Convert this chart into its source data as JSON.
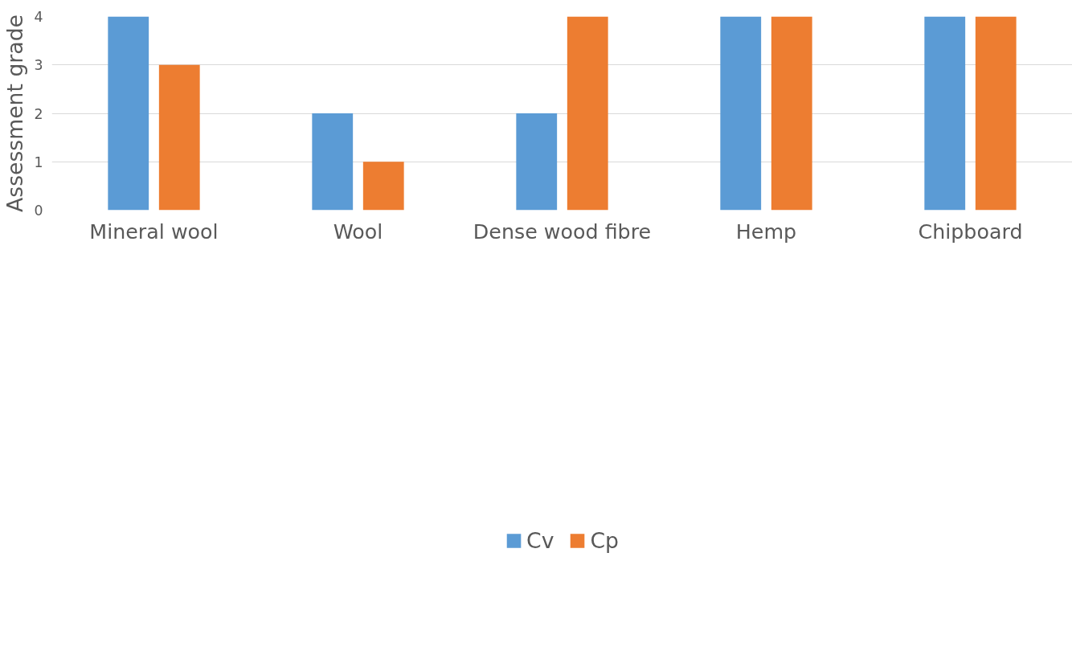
{
  "chart_data": {
    "type": "bar",
    "ylabel": "Assessment grade",
    "categories": [
      "Mineral wool",
      "Wool",
      "Dense wood fibre",
      "Hemp",
      "Chipboard"
    ],
    "series": [
      {
        "name": "Cv",
        "color": "#5b9bd5",
        "values": [
          4,
          2,
          2,
          4,
          4
        ]
      },
      {
        "name": "Cp",
        "color": "#ed7d31",
        "values": [
          3,
          1,
          4,
          4,
          4
        ]
      }
    ],
    "ylim": [
      0,
      4
    ],
    "yticks": [
      0,
      1,
      2,
      3,
      4
    ],
    "grid": "y",
    "legend": "bottom"
  }
}
